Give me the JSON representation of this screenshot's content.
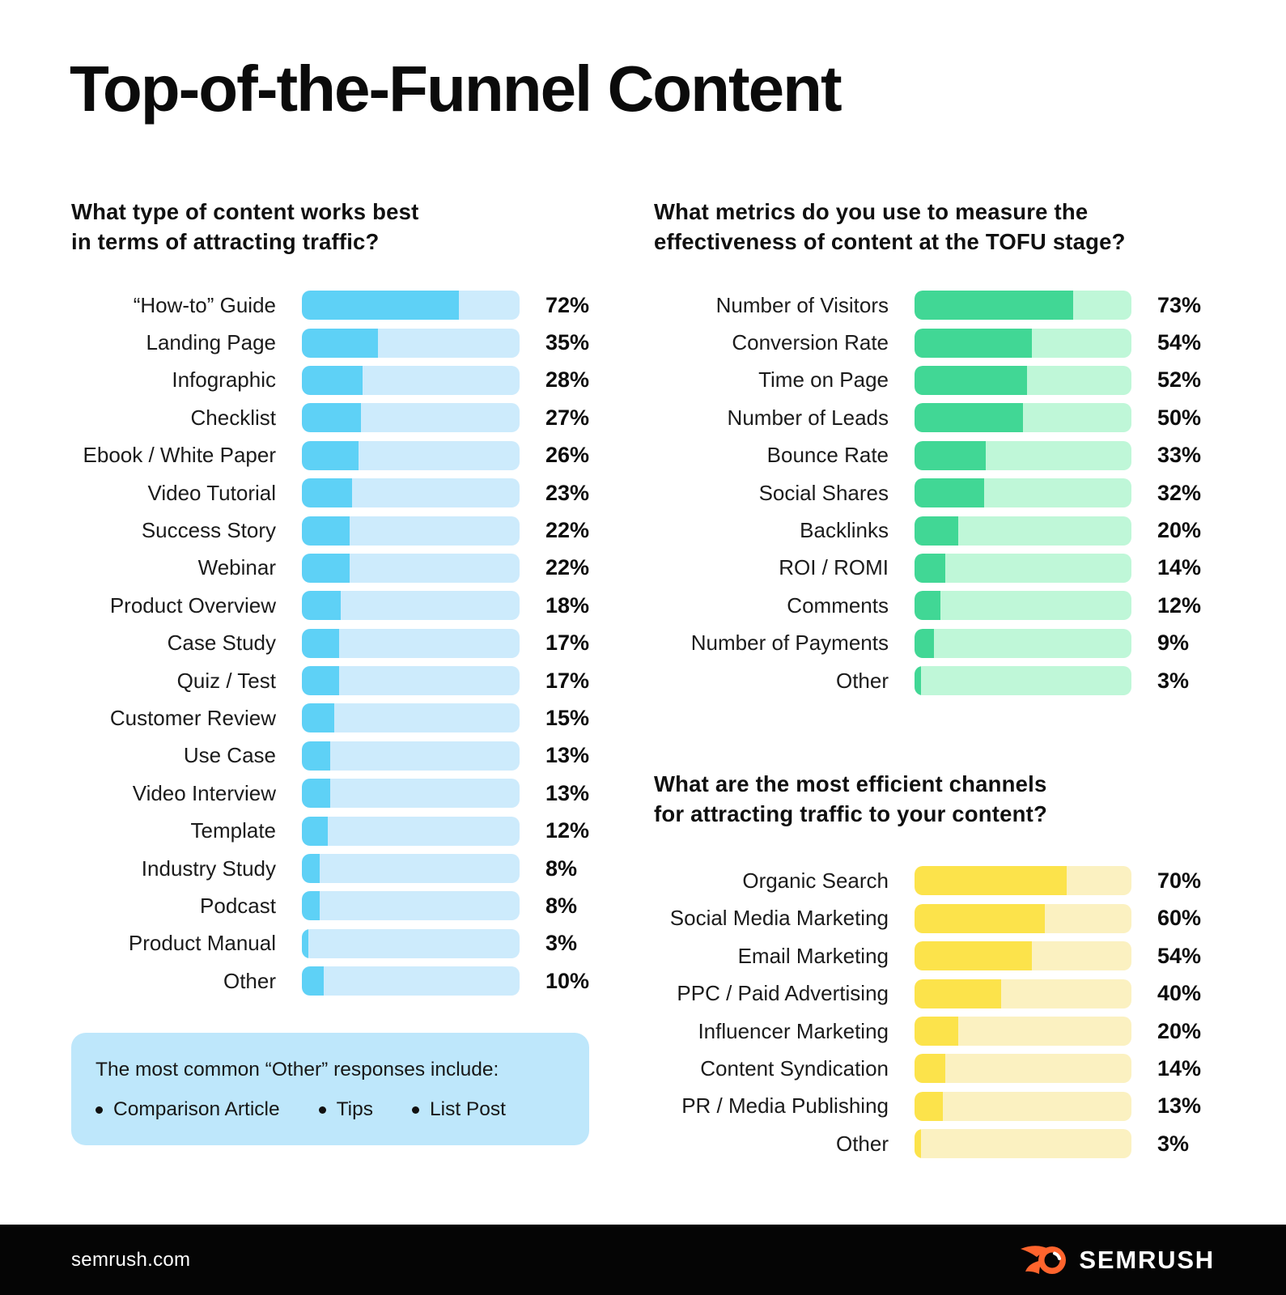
{
  "title": "Top-of-the-Funnel Content",
  "note": {
    "title": "The most common “Other” responses include:",
    "items": [
      "Comparison Article",
      "Tips",
      "List Post"
    ]
  },
  "footer": {
    "url": "semrush.com",
    "brand": "SEMRUSH",
    "brand_orange": "#FF642D"
  },
  "chart_data": [
    {
      "type": "bar",
      "orientation": "horizontal",
      "question_lines": [
        "What type of content works best",
        "in terms of attracting traffic?"
      ],
      "title": "What type of content works best in terms of attracting traffic?",
      "categories": [
        "“How-to” Guide",
        "Landing Page",
        "Infographic",
        "Checklist",
        "Ebook / White Paper",
        "Video Tutorial",
        "Success Story",
        "Webinar",
        "Product Overview",
        "Case Study",
        "Quiz / Test",
        "Customer Review",
        "Use Case",
        "Video Interview",
        "Template",
        "Industry Study",
        "Podcast",
        "Product Manual",
        "Other"
      ],
      "values": [
        72,
        35,
        28,
        27,
        26,
        23,
        22,
        22,
        18,
        17,
        17,
        15,
        13,
        13,
        12,
        8,
        8,
        3,
        10
      ],
      "unit": "%",
      "xlim": [
        0,
        100
      ],
      "grid": false,
      "legend": "none",
      "fill_color": "#5ED1F6",
      "track_color": "#CDEBFC"
    },
    {
      "type": "bar",
      "orientation": "horizontal",
      "question_lines": [
        "What metrics do you use to measure the",
        "effectiveness of content at the TOFU stage?"
      ],
      "title": "What metrics do you use to measure the effectiveness of content at the TOFU stage?",
      "categories": [
        "Number of Visitors",
        "Conversion Rate",
        "Time on Page",
        "Number of Leads",
        "Bounce Rate",
        "Social Shares",
        "Backlinks",
        "ROI / ROMI",
        "Comments",
        "Number of Payments",
        "Other"
      ],
      "values": [
        73,
        54,
        52,
        50,
        33,
        32,
        20,
        14,
        12,
        9,
        3
      ],
      "unit": "%",
      "xlim": [
        0,
        100
      ],
      "grid": false,
      "legend": "none",
      "fill_color": "#41D795",
      "track_color": "#BFF7D8"
    },
    {
      "type": "bar",
      "orientation": "horizontal",
      "question_lines": [
        "What are the most efficient channels",
        "for attracting traffic to your content?"
      ],
      "title": "What are the most efficient channels for attracting traffic to your content?",
      "categories": [
        "Organic Search",
        "Social Media Marketing",
        "Email Marketing",
        "PPC / Paid Advertising",
        "Influencer Marketing",
        "Content Syndication",
        "PR / Media Publishing",
        "Other"
      ],
      "values": [
        70,
        60,
        54,
        40,
        20,
        14,
        13,
        3
      ],
      "unit": "%",
      "xlim": [
        0,
        100
      ],
      "grid": false,
      "legend": "none",
      "fill_color": "#FCE34B",
      "track_color": "#FBF1C1"
    }
  ]
}
